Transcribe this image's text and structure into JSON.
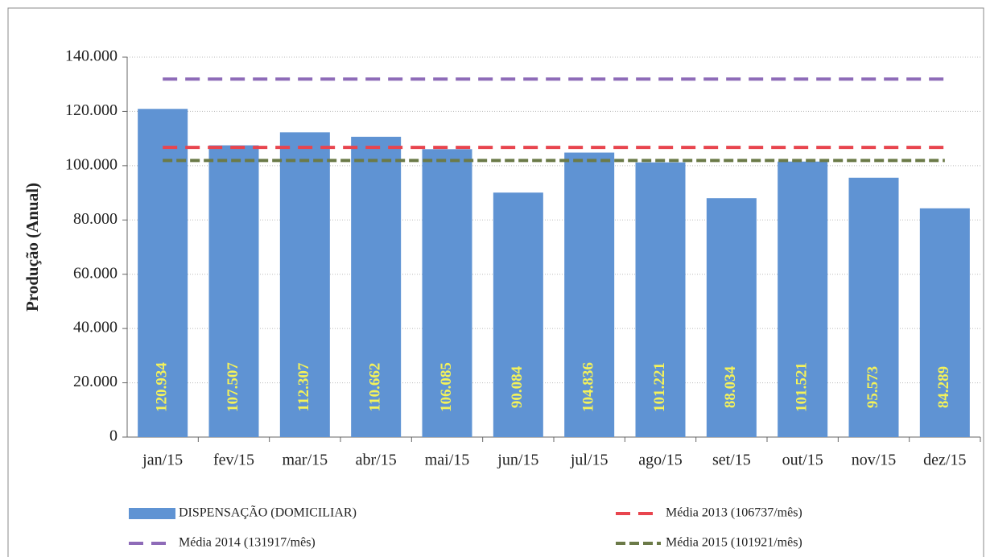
{
  "chart_data": {
    "type": "bar",
    "y_label": "Produção (Anual)",
    "categories": [
      "jan/15",
      "fev/15",
      "mar/15",
      "abr/15",
      "mai/15",
      "jun/15",
      "jul/15",
      "ago/15",
      "set/15",
      "out/15",
      "nov/15",
      "dez/15"
    ],
    "series": [
      {
        "name": "DISPENSAÇÃO (DOMICILIAR)",
        "type": "bar",
        "color": "#5f93d3",
        "values": [
          120934,
          107507,
          112307,
          110662,
          106085,
          90084,
          104836,
          101221,
          88034,
          101521,
          95573,
          84289
        ],
        "value_labels": [
          "120.934",
          "107.507",
          "112.307",
          "110.662",
          "106.085",
          "90.084",
          "104.836",
          "101.221",
          "88.034",
          "101.521",
          "95.573",
          "84.289"
        ]
      },
      {
        "name": "Média 2013 (106737/mês)",
        "type": "line",
        "color": "#e8454e",
        "values": [
          106737,
          106737,
          106737,
          106737,
          106737,
          106737,
          106737,
          106737,
          106737,
          106737,
          106737,
          106737
        ]
      },
      {
        "name": "Média 2014 (131917/mês)",
        "type": "line",
        "color": "#8e6bb8",
        "values": [
          131917,
          131917,
          131917,
          131917,
          131917,
          131917,
          131917,
          131917,
          131917,
          131917,
          131917,
          131917
        ]
      },
      {
        "name": "Média 2015 (101921/mês)",
        "type": "line",
        "color": "#6b7a48",
        "values": [
          101921,
          101921,
          101921,
          101921,
          101921,
          101921,
          101921,
          101921,
          101921,
          101921,
          101921,
          101921
        ]
      }
    ],
    "ylim": [
      0,
      140000
    ],
    "yticks": [
      0,
      {
        "value": 20000,
        "label": "20.000"
      },
      {
        "value": 40000,
        "label": "40.000"
      },
      {
        "value": 60000,
        "label": "60.000"
      },
      {
        "value": 80000,
        "label": "80.000"
      },
      {
        "value": 100000,
        "label": "100.000"
      },
      {
        "value": 120000,
        "label": "120.000"
      },
      {
        "value": 140000,
        "label": "140.000"
      }
    ],
    "grid": true,
    "value_label_color": "#f4f25a"
  }
}
